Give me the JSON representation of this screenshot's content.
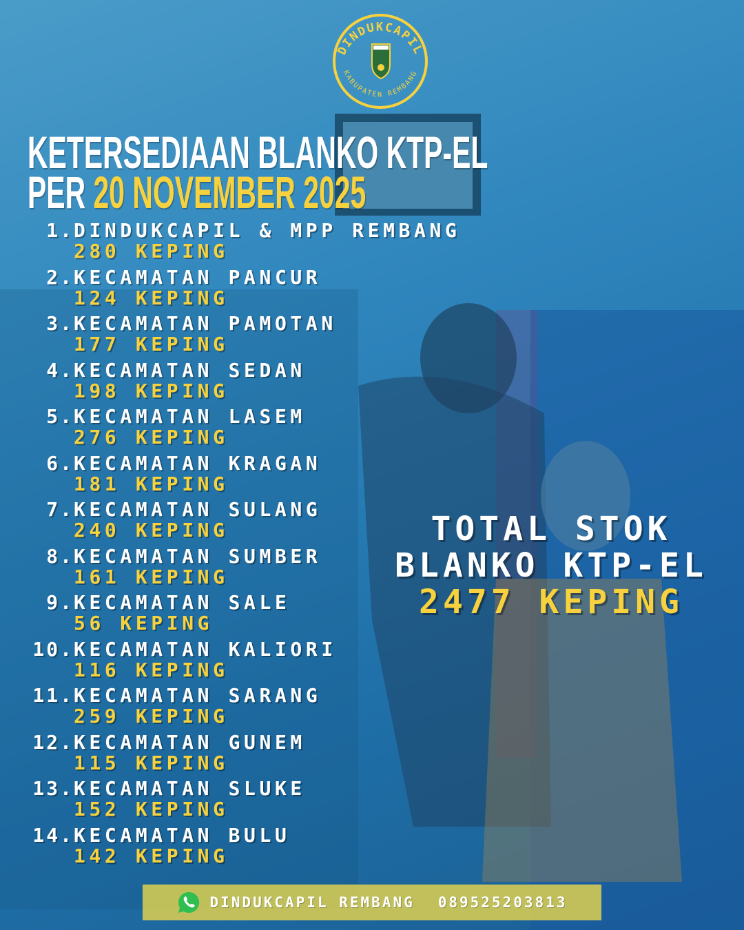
{
  "logo": {
    "top_text": "DINDUKCAPIL",
    "bottom_text": "KABUPATEN REMBANG"
  },
  "title": {
    "line1": "KETERSEDIAAN BLANKO KTP-EL",
    "line2_prefix": "PER",
    "line2_date": "20 NOVEMBER 2025"
  },
  "items": [
    {
      "num": "1.",
      "name": "DINDUKCAPIL & MPP REMBANG",
      "qty": "280 KEPING"
    },
    {
      "num": "2.",
      "name": "KECAMATAN PANCUR",
      "qty": "124 KEPING"
    },
    {
      "num": "3.",
      "name": "KECAMATAN PAMOTAN",
      "qty": "177 KEPING"
    },
    {
      "num": "4.",
      "name": "KECAMATAN SEDAN",
      "qty": "198 KEPING"
    },
    {
      "num": "5.",
      "name": "KECAMATAN LASEM",
      "qty": "276 KEPING"
    },
    {
      "num": "6.",
      "name": "KECAMATAN KRAGAN",
      "qty": "181 KEPING"
    },
    {
      "num": "7.",
      "name": "KECAMATAN SULANG",
      "qty": "240 KEPING"
    },
    {
      "num": "8.",
      "name": "KECAMATAN SUMBER",
      "qty": "161 KEPING"
    },
    {
      "num": "9.",
      "name": "KECAMATAN SALE",
      "qty": "56 KEPING"
    },
    {
      "num": "10.",
      "name": "KECAMATAN KALIORI",
      "qty": "116 KEPING"
    },
    {
      "num": "11.",
      "name": "KECAMATAN SARANG",
      "qty": "259 KEPING"
    },
    {
      "num": "12.",
      "name": "KECAMATAN GUNEM",
      "qty": "115 KEPING"
    },
    {
      "num": "13.",
      "name": "KECAMATAN SLUKE",
      "qty": "152 KEPING"
    },
    {
      "num": "14.",
      "name": "KECAMATAN BULU",
      "qty": "142 KEPING"
    }
  ],
  "total": {
    "line1": "TOTAL STOK",
    "line2": "BLANKO KTP-EL",
    "line3": "2477 KEPING"
  },
  "footer": {
    "icon": "whatsapp-icon",
    "name": "DINDUKCAPIL REMBANG",
    "phone": "089525203813"
  },
  "colors": {
    "accent": "#f7d23e",
    "background": "#2f86bd",
    "footer_bar": "#ded050"
  }
}
